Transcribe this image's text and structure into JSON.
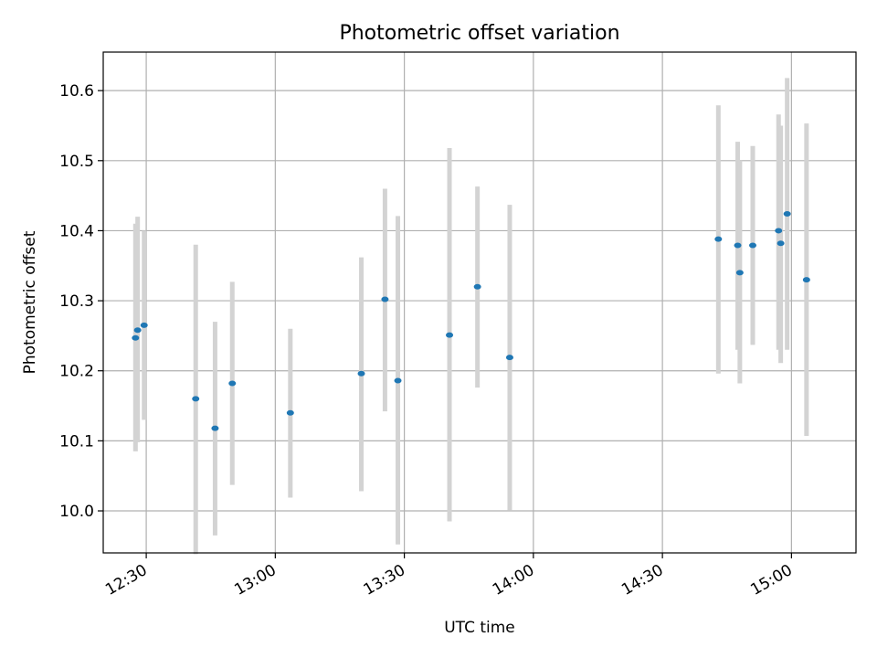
{
  "chart_data": {
    "type": "scatter",
    "title": "Photometric offset variation",
    "xlabel": "UTC time",
    "ylabel": "Photometric offset",
    "xlim": [
      "12:20",
      "15:15"
    ],
    "ylim": [
      9.94,
      10.655
    ],
    "x_ticks": [
      "12:30",
      "13:00",
      "13:30",
      "14:00",
      "14:30",
      "15:00"
    ],
    "y_ticks": [
      "10.0",
      "10.1",
      "10.2",
      "10.3",
      "10.4",
      "10.5",
      "10.6"
    ],
    "grid": true,
    "marker_color": "#1f77b4",
    "errorbar_color": "#d3d3d3",
    "points": [
      {
        "x": "12:27:30",
        "y": 10.247,
        "err_low": 10.085,
        "err_high": 10.41
      },
      {
        "x": "12:28:00",
        "y": 10.258,
        "err_low": 10.098,
        "err_high": 10.42
      },
      {
        "x": "12:29:30",
        "y": 10.265,
        "err_low": 10.13,
        "err_high": 10.4
      },
      {
        "x": "12:41:30",
        "y": 10.16,
        "err_low": 9.938,
        "err_high": 10.38
      },
      {
        "x": "12:46:00",
        "y": 10.118,
        "err_low": 9.965,
        "err_high": 10.27
      },
      {
        "x": "12:50:00",
        "y": 10.182,
        "err_low": 10.037,
        "err_high": 10.327
      },
      {
        "x": "13:03:30",
        "y": 10.14,
        "err_low": 10.019,
        "err_high": 10.26
      },
      {
        "x": "13:20:00",
        "y": 10.196,
        "err_low": 10.028,
        "err_high": 10.362
      },
      {
        "x": "13:25:30",
        "y": 10.302,
        "err_low": 10.142,
        "err_high": 10.46
      },
      {
        "x": "13:28:30",
        "y": 10.186,
        "err_low": 9.952,
        "err_high": 10.421
      },
      {
        "x": "13:40:30",
        "y": 10.251,
        "err_low": 9.985,
        "err_high": 10.518
      },
      {
        "x": "13:47:00",
        "y": 10.32,
        "err_low": 10.176,
        "err_high": 10.463
      },
      {
        "x": "13:54:30",
        "y": 10.219,
        "err_low": 10.001,
        "err_high": 10.437
      },
      {
        "x": "14:43:00",
        "y": 10.388,
        "err_low": 10.196,
        "err_high": 10.579
      },
      {
        "x": "14:47:30",
        "y": 10.379,
        "err_low": 10.23,
        "err_high": 10.527
      },
      {
        "x": "14:48:00",
        "y": 10.34,
        "err_low": 10.182,
        "err_high": 10.5
      },
      {
        "x": "14:51:00",
        "y": 10.379,
        "err_low": 10.237,
        "err_high": 10.521
      },
      {
        "x": "14:57:00",
        "y": 10.4,
        "err_low": 10.23,
        "err_high": 10.566
      },
      {
        "x": "14:57:30",
        "y": 10.382,
        "err_low": 10.211,
        "err_high": 10.55
      },
      {
        "x": "14:59:00",
        "y": 10.424,
        "err_low": 10.23,
        "err_high": 10.618
      },
      {
        "x": "15:03:30",
        "y": 10.33,
        "err_low": 10.107,
        "err_high": 10.553
      }
    ]
  }
}
